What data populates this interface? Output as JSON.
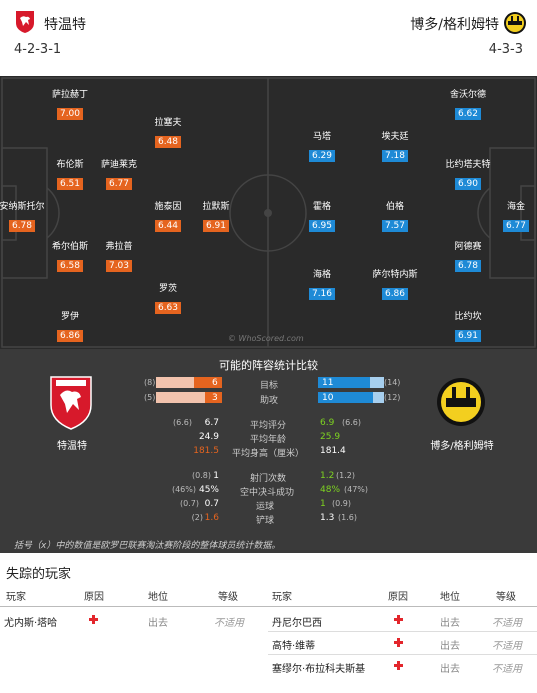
{
  "home": {
    "name": "特温特",
    "formation": "4-2-3-1",
    "players": [
      {
        "name": "萨拉赫丁",
        "rating": "7.00"
      },
      {
        "name": "拉塞夫",
        "rating": "6.48"
      },
      {
        "name": "布伦斯",
        "rating": "6.51"
      },
      {
        "name": "萨迪莱克",
        "rating": "6.77"
      },
      {
        "name": "安纳斯托尔",
        "rating": "6.78"
      },
      {
        "name": "施泰因",
        "rating": "6.44"
      },
      {
        "name": "拉默斯",
        "rating": "6.91"
      },
      {
        "name": "希尔伯斯",
        "rating": "6.58"
      },
      {
        "name": "弗拉普",
        "rating": "7.03"
      },
      {
        "name": "罗茨",
        "rating": "6.63"
      },
      {
        "name": "罗伊",
        "rating": "6.86"
      }
    ]
  },
  "away": {
    "name": "博多/格利姆特",
    "formation": "4-3-3",
    "players": [
      {
        "name": "舍沃尔德",
        "rating": "6.62"
      },
      {
        "name": "马塔",
        "rating": "6.29"
      },
      {
        "name": "埃夫廷",
        "rating": "7.18"
      },
      {
        "name": "比约塔夫特",
        "rating": "6.90"
      },
      {
        "name": "霍格",
        "rating": "6.95"
      },
      {
        "name": "伯格",
        "rating": "7.57"
      },
      {
        "name": "海金",
        "rating": "6.77"
      },
      {
        "name": "阿德赛",
        "rating": "6.78"
      },
      {
        "name": "海格",
        "rating": "7.16"
      },
      {
        "name": "萨尔特内斯",
        "rating": "6.86"
      },
      {
        "name": "比约坎",
        "rating": "6.91"
      }
    ]
  },
  "watermark": "© WhoScored.com",
  "stats": {
    "title": "可能的阵容统计比较",
    "bars": [
      {
        "label": "目标",
        "home": "6",
        "home_paren": "(8)",
        "away": "11",
        "away_paren": "(14)",
        "home_frac": 0.43,
        "away_frac": 0.79
      },
      {
        "label": "助攻",
        "home": "3",
        "home_paren": "(5)",
        "away": "10",
        "away_paren": "(12)",
        "home_frac": 0.25,
        "away_frac": 0.83
      }
    ],
    "rows": [
      {
        "label": "平均评分",
        "home_paren": "(6.6)",
        "home": "6.7",
        "away": "6.9",
        "away_paren": "(6.6)",
        "better": "away"
      },
      {
        "label": "平均年龄",
        "home_paren": "",
        "home": "24.9",
        "away": "25.9",
        "away_paren": "",
        "better": "away"
      },
      {
        "label": "平均身高（厘米）",
        "home_paren": "",
        "home": "181.5",
        "away": "181.4",
        "away_paren": "",
        "better": "home"
      },
      {
        "label": "射门次数",
        "home_paren": "(0.8)",
        "home": "1",
        "away": "1.2",
        "away_paren": "(1.2)",
        "better": "away"
      },
      {
        "label": "空中决斗成功",
        "home_paren": "(46%)",
        "home": "45%",
        "away": "48%",
        "away_paren": "(47%)",
        "better": "away"
      },
      {
        "label": "运球",
        "home_paren": "(0.7)",
        "home": "0.7",
        "away": "1",
        "away_paren": "(0.9)",
        "better": "away"
      },
      {
        "label": "铲球",
        "home_paren": "(2)",
        "home": "1.6",
        "away": "1.3",
        "away_paren": "(1.6)",
        "better": "home"
      }
    ],
    "note": "括号（x）中的数值是欧罗巴联赛淘汰赛阶段的整体球员统计数据。",
    "colors": {
      "home": "#e5641f",
      "away": "#1e8ad6",
      "better_home": "#e5641f",
      "better_away": "#7ed321"
    }
  },
  "missing": {
    "title": "失踪的玩家",
    "headers": {
      "player": "玩家",
      "reason": "原因",
      "status": "地位",
      "level": "等级"
    },
    "home": [
      {
        "player": "尤内斯·塔哈",
        "status": "出去",
        "level": "不适用"
      }
    ],
    "away": [
      {
        "player": "丹尼尔巴西",
        "status": "出去",
        "level": "不适用"
      },
      {
        "player": "高特·维蒂",
        "status": "出去",
        "level": "不适用"
      },
      {
        "player": "塞缪尔·布拉科夫斯基",
        "status": "出去",
        "level": "不适用"
      }
    ]
  }
}
